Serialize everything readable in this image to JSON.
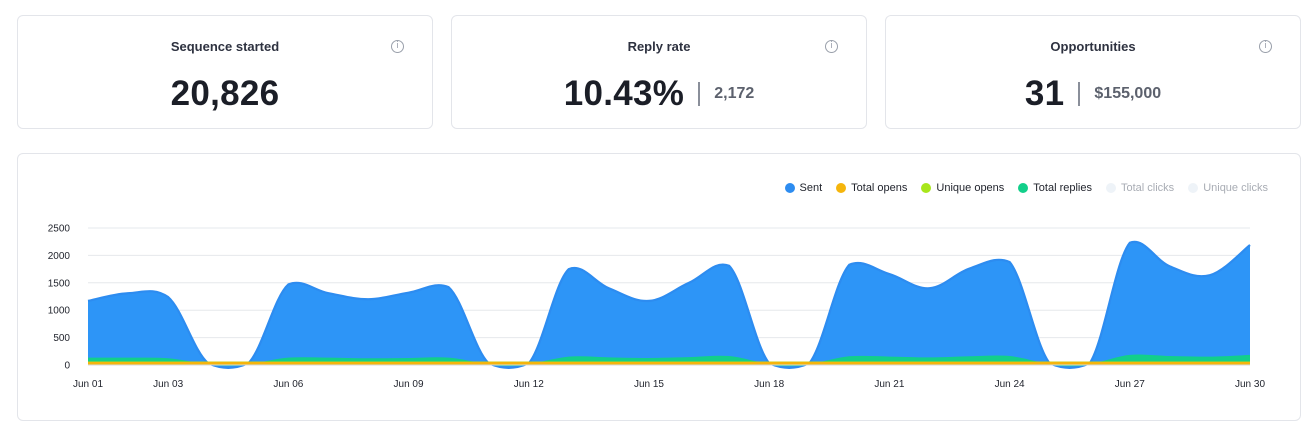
{
  "stats": [
    {
      "title": "Sequence started",
      "value": "20,826",
      "sub": ""
    },
    {
      "title": "Reply rate",
      "value": "10.43%",
      "sub": "2,172"
    },
    {
      "title": "Opportunities",
      "value": "31",
      "sub": "$155,000"
    }
  ],
  "info_glyph": "i",
  "colors": {
    "sent": "#2d8cf0",
    "sent_fill": "#2d95f7",
    "total_opens": "#f5b50c",
    "unique_opens": "#a8e61b",
    "total_replies": "#12cf8a",
    "total_clicks": "#eef3f8",
    "unique_clicks": "#eef3f8"
  },
  "chart_data": {
    "type": "area",
    "legend": [
      "Sent",
      "Total opens",
      "Unique opens",
      "Total replies",
      "Total clicks",
      "Unique clicks"
    ],
    "legend_placement": "top-right",
    "ylim": [
      0,
      2500
    ],
    "yticks": [
      0,
      500,
      1000,
      1500,
      2000,
      2500
    ],
    "grid": true,
    "x_labels": [
      "Jun 01",
      "Jun 03",
      "Jun 06",
      "Jun 09",
      "Jun 12",
      "Jun 15",
      "Jun 18",
      "Jun 21",
      "Jun 24",
      "Jun 27",
      "Jun 30"
    ],
    "x_label_days": [
      1,
      3,
      6,
      9,
      12,
      15,
      18,
      21,
      24,
      27,
      30
    ],
    "x": [
      1,
      2,
      3,
      4,
      5,
      6,
      7,
      8,
      9,
      10,
      11,
      12,
      13,
      14,
      15,
      16,
      17,
      18,
      19,
      20,
      21,
      22,
      23,
      24,
      25,
      26,
      27,
      28,
      29,
      30
    ],
    "series": [
      {
        "name": "Sent",
        "values": [
          1170,
          1310,
          1240,
          30,
          30,
          1470,
          1310,
          1200,
          1320,
          1420,
          30,
          30,
          1750,
          1400,
          1170,
          1500,
          1810,
          30,
          30,
          1830,
          1660,
          1400,
          1760,
          1880,
          30,
          30,
          2230,
          1800,
          1640,
          2190
        ]
      },
      {
        "name": "Total replies",
        "values": [
          120,
          120,
          110,
          10,
          10,
          120,
          120,
          110,
          115,
          120,
          10,
          10,
          140,
          125,
          115,
          130,
          150,
          10,
          10,
          145,
          140,
          125,
          145,
          150,
          10,
          10,
          170,
          150,
          140,
          170
        ]
      },
      {
        "name": "Unique opens",
        "values": [
          55,
          55,
          55,
          55,
          55,
          55,
          55,
          55,
          55,
          55,
          55,
          55,
          55,
          55,
          55,
          55,
          55,
          55,
          55,
          55,
          55,
          55,
          55,
          55,
          55,
          55,
          55,
          55,
          55,
          55
        ]
      },
      {
        "name": "Total opens",
        "values": [
          50,
          50,
          50,
          50,
          50,
          50,
          50,
          50,
          50,
          50,
          50,
          50,
          50,
          50,
          50,
          50,
          50,
          50,
          50,
          50,
          50,
          50,
          50,
          50,
          50,
          50,
          50,
          50,
          50,
          50
        ]
      },
      {
        "name": "Total clicks",
        "values": [
          0,
          0,
          0,
          0,
          0,
          0,
          0,
          0,
          0,
          0,
          0,
          0,
          0,
          0,
          0,
          0,
          0,
          0,
          0,
          0,
          0,
          0,
          0,
          0,
          0,
          0,
          0,
          0,
          0,
          0
        ]
      },
      {
        "name": "Unique clicks",
        "values": [
          0,
          0,
          0,
          0,
          0,
          0,
          0,
          0,
          0,
          0,
          0,
          0,
          0,
          0,
          0,
          0,
          0,
          0,
          0,
          0,
          0,
          0,
          0,
          0,
          0,
          0,
          0,
          0,
          0,
          0
        ]
      }
    ]
  }
}
